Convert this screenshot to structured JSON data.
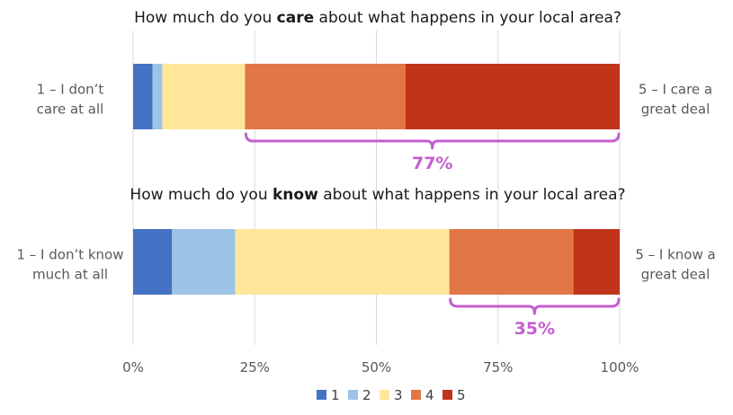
{
  "chart_data": {
    "type": "bar",
    "orientation": "horizontal",
    "stacked": "percent",
    "xlim": [
      0,
      100
    ],
    "x_ticks": [
      "0%",
      "25%",
      "50%",
      "75%",
      "100%"
    ],
    "grid": true,
    "legend_position": "bottom",
    "legend": [
      "1",
      "2",
      "3",
      "4",
      "5"
    ],
    "colors": [
      "#4472c4",
      "#9dc3e6",
      "#ffe699",
      "#e07745",
      "#c0341a"
    ],
    "panels": [
      {
        "title_parts": [
          "How much do you ",
          "care",
          " about what happens in your local area?"
        ],
        "left_label_lines": [
          "1 – I don’t",
          "care at all"
        ],
        "right_label_lines": [
          "5 – I care a",
          "great deal"
        ],
        "values": [
          4,
          2,
          17,
          33,
          44
        ],
        "annotation": {
          "label": "77%",
          "from_segment": 3,
          "to_segment": 4
        }
      },
      {
        "title_parts": [
          "How much do you ",
          "know",
          " about what happens in your local area?"
        ],
        "left_label_lines": [
          "1 – I don’t know",
          "much at all"
        ],
        "right_label_lines": [
          "5 – I know a",
          "great deal"
        ],
        "values": [
          8,
          13,
          44,
          25.5,
          9.5
        ],
        "annotation": {
          "label": "35%",
          "from_segment": 3,
          "to_segment": 4
        }
      }
    ]
  }
}
